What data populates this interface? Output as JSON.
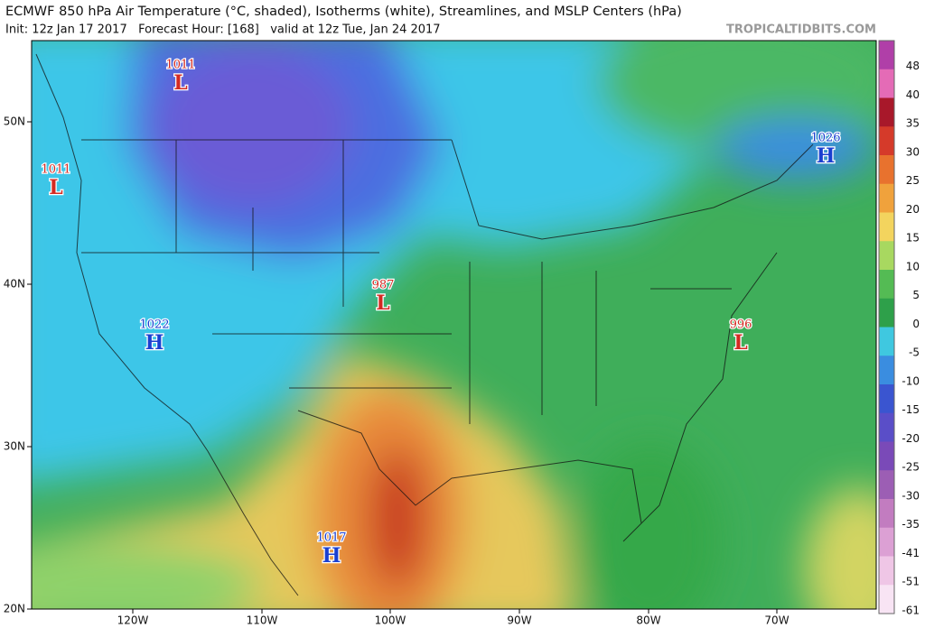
{
  "header": {
    "title": "ECMWF 850 hPa Air Temperature (°C, shaded), Isotherms (white), Streamlines, and MSLP Centers (hPa)",
    "subtitle": "Init: 12z Jan 17 2017   Forecast Hour: [168]   valid at 12z Tue, Jan 24 2017",
    "brand": "TROPICALTIDBITS.COM"
  },
  "map": {
    "lat_labels": [
      "50N",
      "40N",
      "30N",
      "20N"
    ],
    "lon_labels": [
      "120W",
      "110W",
      "100W",
      "90W",
      "80W",
      "70W"
    ],
    "centers": [
      {
        "pressure": 1011,
        "letter": "L"
      },
      {
        "pressure": 1011,
        "letter": "L"
      },
      {
        "pressure": 1026,
        "letter": "H"
      },
      {
        "pressure": 1022,
        "letter": "H"
      },
      {
        "pressure": 987,
        "letter": "L"
      },
      {
        "pressure": 996,
        "letter": "L"
      },
      {
        "pressure": 1017,
        "letter": "H"
      }
    ]
  },
  "colorbar": {
    "ticks": [
      48,
      40,
      35,
      30,
      25,
      20,
      15,
      10,
      5,
      0,
      -5,
      -10,
      -15,
      -20,
      -25,
      -30,
      -35,
      -41,
      -51,
      -61
    ]
  }
}
